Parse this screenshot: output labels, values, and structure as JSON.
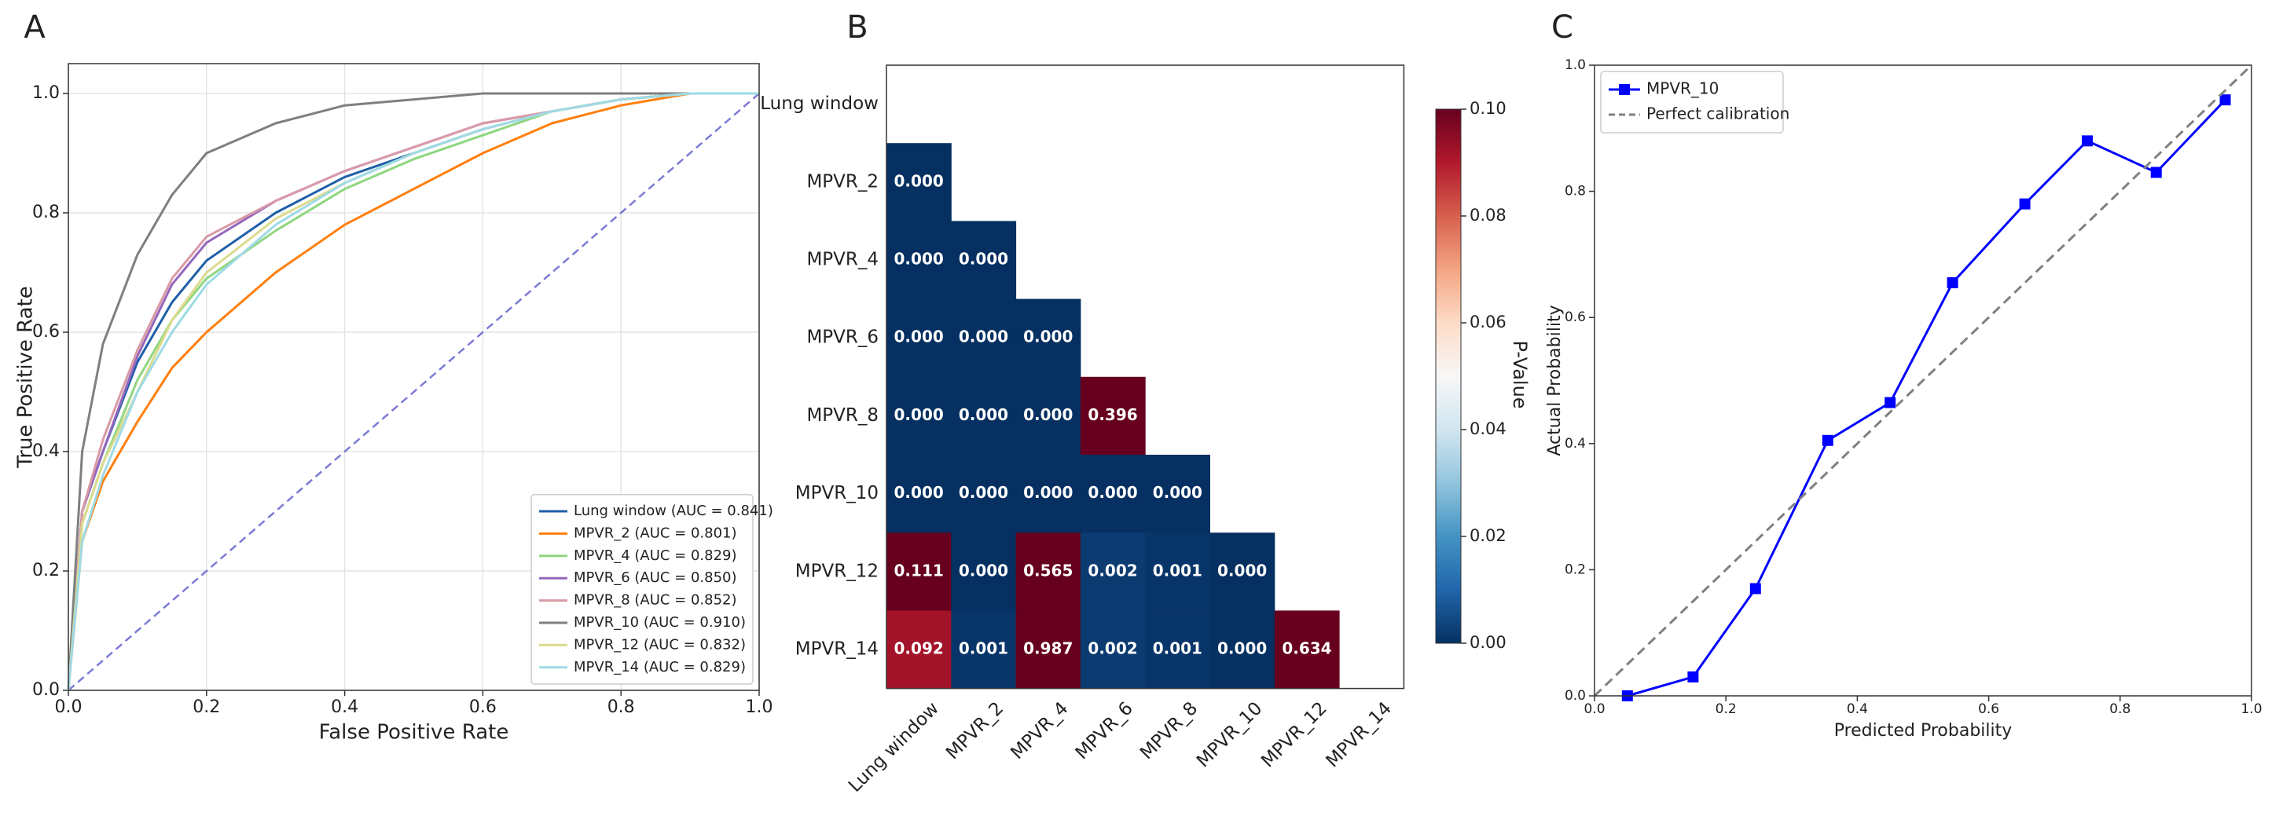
{
  "chart_data": [
    {
      "type": "line",
      "panel_label": "A",
      "x_label": "False Positive Rate",
      "y_label": "True Positive Rate",
      "x": [
        0,
        0.02,
        0.05,
        0.1,
        0.15,
        0.2,
        0.3,
        0.4,
        0.5,
        0.6,
        0.7,
        0.8,
        0.9,
        1
      ],
      "xlim": [
        0,
        1
      ],
      "ylim": [
        0,
        1.05
      ],
      "xticks": [
        {
          "value": 0,
          "label": "0.0"
        },
        0.2,
        0.4,
        0.6,
        0.8,
        {
          "value": 1,
          "label": "1.0"
        }
      ],
      "yticks": [
        {
          "value": 0,
          "label": "0.0"
        },
        0.2,
        0.4,
        0.6,
        0.8,
        {
          "value": 1,
          "label": "1.0"
        }
      ],
      "grid": true,
      "chance_line": true,
      "legend": "lower right",
      "series": [
        {
          "name": "Lung window (AUC = 0.841)",
          "color": "#1f5fa8",
          "values": [
            0,
            0.3,
            0.4,
            0.55,
            0.65,
            0.72,
            0.8,
            0.86,
            0.9,
            0.94,
            0.97,
            0.99,
            1,
            1
          ]
        },
        {
          "name": "MPVR_2 (AUC = 0.801)",
          "color": "#ff7f0e",
          "values": [
            0,
            0.25,
            0.35,
            0.45,
            0.54,
            0.6,
            0.7,
            0.78,
            0.84,
            0.9,
            0.95,
            0.98,
            1,
            1
          ]
        },
        {
          "name": "MPVR_4 (AUC = 0.829)",
          "color": "#8fd67f",
          "values": [
            0,
            0.28,
            0.38,
            0.52,
            0.62,
            0.69,
            0.77,
            0.84,
            0.89,
            0.93,
            0.97,
            0.99,
            1,
            1
          ]
        },
        {
          "name": "MPVR_6 (AUC = 0.850)",
          "color": "#9467bd",
          "values": [
            0,
            0.3,
            0.4,
            0.56,
            0.68,
            0.75,
            0.82,
            0.87,
            0.91,
            0.95,
            0.97,
            0.99,
            1,
            1
          ]
        },
        {
          "name": "MPVR_8 (AUC = 0.852)",
          "color": "#d99aa6",
          "values": [
            0,
            0.3,
            0.42,
            0.57,
            0.69,
            0.76,
            0.82,
            0.87,
            0.91,
            0.95,
            0.97,
            0.99,
            1,
            1
          ]
        },
        {
          "name": "MPVR_10 (AUC = 0.910)",
          "color": "#7f7f7f",
          "values": [
            0,
            0.4,
            0.58,
            0.73,
            0.83,
            0.9,
            0.95,
            0.98,
            0.99,
            1,
            1,
            1,
            1,
            1
          ]
        },
        {
          "name": "MPVR_12 (AUC = 0.832)",
          "color": "#dbdb8d",
          "values": [
            0,
            0.28,
            0.38,
            0.5,
            0.62,
            0.7,
            0.79,
            0.85,
            0.9,
            0.94,
            0.97,
            0.99,
            1,
            1
          ]
        },
        {
          "name": "MPVR_14 (AUC = 0.829)",
          "color": "#9edae5",
          "values": [
            0,
            0.25,
            0.36,
            0.5,
            0.6,
            0.68,
            0.78,
            0.85,
            0.9,
            0.94,
            0.97,
            0.99,
            1,
            1
          ]
        }
      ]
    },
    {
      "type": "heatmap",
      "panel_label": "B",
      "rows": [
        "Lung window",
        "MPVR_2",
        "MPVR_4",
        "MPVR_6",
        "MPVR_8",
        "MPVR_10",
        "MPVR_12",
        "MPVR_14"
      ],
      "columns": [
        "Lung window",
        "MPVR_2",
        "MPVR_4",
        "MPVR_6",
        "MPVR_8",
        "MPVR_10",
        "MPVR_12",
        "MPVR_14"
      ],
      "values": [
        [
          null,
          null,
          null,
          null,
          null,
          null,
          null,
          null
        ],
        [
          0,
          null,
          null,
          null,
          null,
          null,
          null,
          null
        ],
        [
          0,
          0,
          null,
          null,
          null,
          null,
          null,
          null
        ],
        [
          0,
          0,
          0,
          null,
          null,
          null,
          null,
          null
        ],
        [
          0,
          0,
          0,
          0.396,
          null,
          null,
          null,
          null
        ],
        [
          0,
          0,
          0,
          0,
          0,
          null,
          null,
          null
        ],
        [
          0.111,
          0,
          0.565,
          0.002,
          0.001,
          0,
          null,
          null
        ],
        [
          0.092,
          0.001,
          0.987,
          0.002,
          0.001,
          0,
          0.634,
          null
        ]
      ],
      "value_labels": [
        [
          null,
          null,
          null,
          null,
          null,
          null,
          null,
          null
        ],
        [
          "0.000",
          null,
          null,
          null,
          null,
          null,
          null,
          null
        ],
        [
          "0.000",
          "0.000",
          null,
          null,
          null,
          null,
          null,
          null
        ],
        [
          "0.000",
          "0.000",
          "0.000",
          null,
          null,
          null,
          null,
          null
        ],
        [
          "0.000",
          "0.000",
          "0.000",
          "0.396",
          null,
          null,
          null,
          null
        ],
        [
          "0.000",
          "0.000",
          "0.000",
          "0.000",
          "0.000",
          null,
          null,
          null
        ],
        [
          "0.111",
          "0.000",
          "0.565",
          "0.002",
          "0.001",
          "0.000",
          null,
          null
        ],
        [
          "0.092",
          "0.001",
          "0.987",
          "0.002",
          "0.001",
          "0.000",
          "0.634",
          null
        ]
      ],
      "colorbar_label": "P-Value",
      "clim": [
        0,
        0.1
      ],
      "colorbar_ticks": [
        {
          "value": 0,
          "label": "0.00"
        },
        {
          "value": 0.02,
          "label": "0.02"
        },
        {
          "value": 0.04,
          "label": "0.04"
        },
        {
          "value": 0.06,
          "label": "0.06"
        },
        {
          "value": 0.08,
          "label": "0.08"
        },
        {
          "value": 0.1,
          "label": "0.10"
        }
      ],
      "colorscale": [
        "#053061",
        "#2166ac",
        "#4393c3",
        "#92c5de",
        "#d1e5f0",
        "#f7f7f7",
        "#fddbc7",
        "#f4a582",
        "#d6604d",
        "#b2182b",
        "#67001f"
      ]
    },
    {
      "type": "line",
      "panel_label": "C",
      "x_label": "Predicted Probability",
      "y_label": "Actual Probability",
      "xlim": [
        0,
        1
      ],
      "ylim": [
        0,
        1
      ],
      "xticks": [
        {
          "value": 0,
          "label": "0.0"
        },
        0.2,
        0.4,
        0.6,
        0.8,
        {
          "value": 1,
          "label": "1.0"
        }
      ],
      "yticks": [
        {
          "value": 0,
          "label": "0.0"
        },
        0.2,
        0.4,
        0.6,
        0.8,
        {
          "value": 1,
          "label": "1.0"
        }
      ],
      "grid": false,
      "legend": "upper left",
      "series": [
        {
          "name": "MPVR_10",
          "color": "#0000ff",
          "marker": "square",
          "x": [
            0.05,
            0.15,
            0.245,
            0.355,
            0.45,
            0.545,
            0.655,
            0.75,
            0.855,
            0.96
          ],
          "values": [
            0,
            0.03,
            0.17,
            0.405,
            0.465,
            0.655,
            0.78,
            0.88,
            0.83,
            0.945
          ]
        },
        {
          "name": "Perfect calibration",
          "color": "#808080",
          "style": "dashed",
          "x": [
            0,
            1
          ],
          "values": [
            0,
            1
          ]
        }
      ]
    }
  ]
}
